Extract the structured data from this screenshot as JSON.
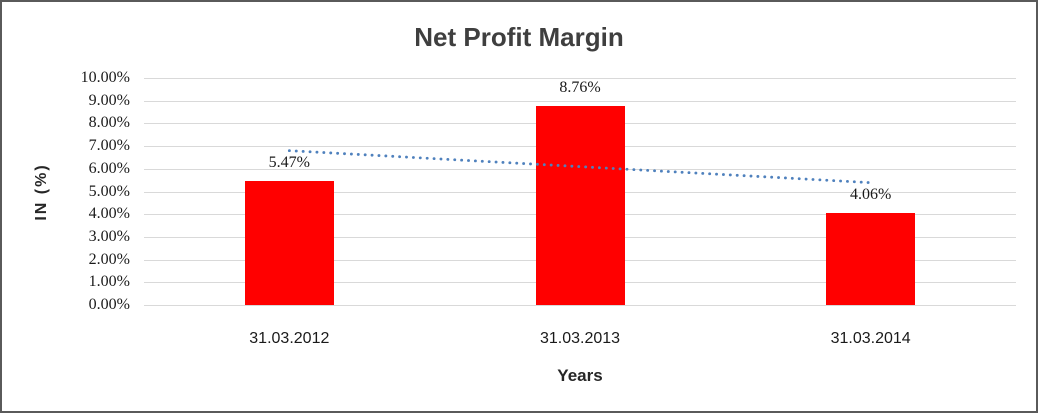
{
  "window": {
    "background_color": "#ffffff",
    "border_color": "#5a5a5a"
  },
  "chart_data": {
    "type": "bar",
    "title": "Net Profit Margin",
    "xlabel": "Years",
    "ylabel": "IN (%)",
    "categories": [
      "31.03.2012",
      "31.03.2013",
      "31.03.2014"
    ],
    "values": [
      5.47,
      8.76,
      4.06
    ],
    "data_labels": [
      "5.47%",
      "8.76%",
      "4.06%"
    ],
    "y_tick_labels": [
      "10.00%",
      "9.00%",
      "8.00%",
      "7.00%",
      "6.00%",
      "5.00%",
      "4.00%",
      "3.00%",
      "2.00%",
      "1.00%",
      "0.00%"
    ],
    "ylim": [
      0,
      10
    ],
    "grid": true,
    "legend": "none",
    "bar_color": "#ff0000",
    "gridline_color": "#d9d9d9",
    "title_color": "#3f3f3f",
    "label_color": "#1a1a1a",
    "trendline": {
      "type": "linear",
      "style": "dotted",
      "color": "#4f81bd",
      "start_value": 6.8,
      "end_value": 5.39
    }
  }
}
